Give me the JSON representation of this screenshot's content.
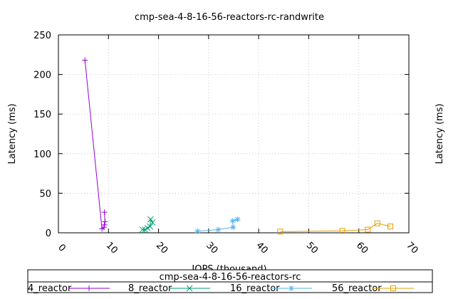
{
  "chart_data": {
    "type": "line",
    "title": "cmp-sea-4-8-16-56-reactors-rc-randwrite",
    "xlabel": "IOPS (thousand)",
    "ylabel": "Latency (ms)",
    "ylabel_right": "Latency (ms)",
    "xlim": [
      0,
      70
    ],
    "ylim": [
      0,
      250
    ],
    "x_ticks": [
      0,
      10,
      20,
      30,
      40,
      50,
      60,
      70
    ],
    "y_ticks": [
      0,
      50,
      100,
      150,
      200,
      250
    ],
    "grid": true,
    "legend_title": "cmp-sea-4-8-16-56-reactors-rc",
    "legend_placement": "bottom",
    "series": [
      {
        "name": "4_reactor",
        "color": "#9400d3",
        "marker": "plus",
        "points": [
          [
            5.3,
            218
          ],
          [
            8.7,
            5
          ],
          [
            9.1,
            7
          ],
          [
            9.2,
            10
          ],
          [
            9.3,
            14
          ],
          [
            9.2,
            26
          ]
        ]
      },
      {
        "name": "8_reactor",
        "color": "#009e73",
        "marker": "cross",
        "points": [
          [
            16.8,
            4
          ],
          [
            17.3,
            4
          ],
          [
            17.8,
            6
          ],
          [
            18.3,
            8
          ],
          [
            18.4,
            17
          ],
          [
            18.8,
            13
          ]
        ]
      },
      {
        "name": "16_reactor",
        "color": "#56b4e9",
        "marker": "asterisk",
        "points": [
          [
            27.8,
            2
          ],
          [
            31.9,
            4
          ],
          [
            34.9,
            7
          ],
          [
            34.8,
            15
          ],
          [
            35.8,
            17
          ]
        ]
      },
      {
        "name": "56_reactor",
        "color": "#e69f00",
        "marker": "square",
        "points": [
          [
            44.3,
            1.5
          ],
          [
            56.7,
            2.5
          ],
          [
            61.8,
            4
          ],
          [
            63.7,
            12
          ],
          [
            66.3,
            8
          ]
        ]
      }
    ]
  }
}
